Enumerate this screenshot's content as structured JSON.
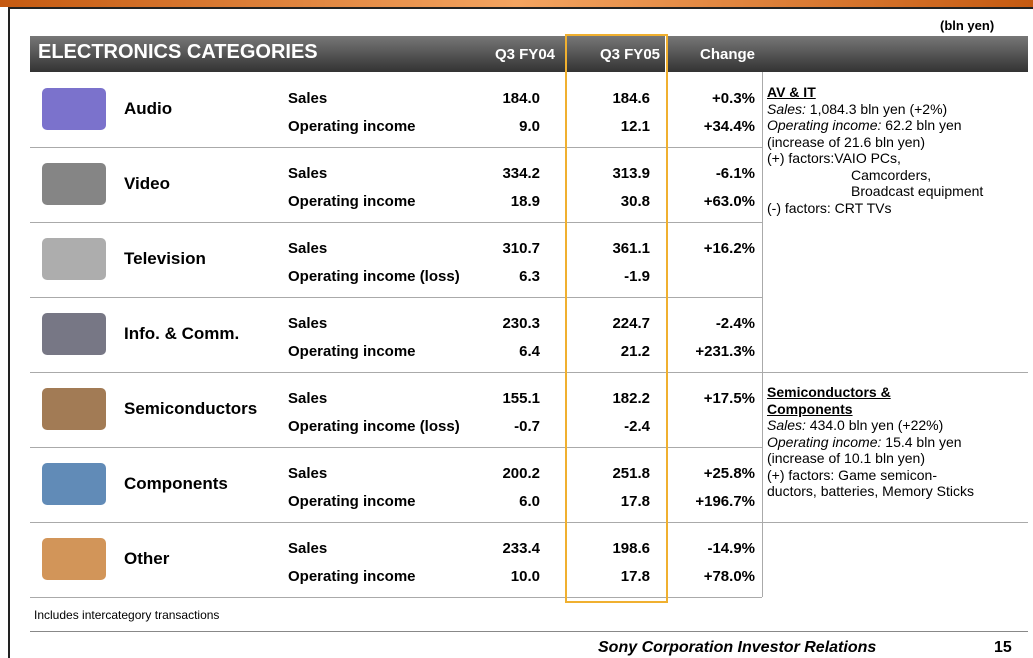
{
  "unit_note": "(bln yen)",
  "table": {
    "header": [
      "ELECTRONICS CATEGORIES",
      "Q3 FY04",
      "Q3 FY05",
      "Change"
    ],
    "rows": [
      {
        "category": "Audio",
        "lines": [
          [
            "Sales",
            "184.0",
            "184.6",
            "+0.3%"
          ],
          [
            "Operating income",
            "9.0",
            "12.1",
            "+34.4%"
          ]
        ]
      },
      {
        "category": "Video",
        "lines": [
          [
            "Sales",
            "334.2",
            "313.9",
            "-6.1%"
          ],
          [
            "Operating income",
            "18.9",
            "30.8",
            "+63.0%"
          ]
        ]
      },
      {
        "category": "Television",
        "lines": [
          [
            "Sales",
            "310.7",
            "361.1",
            "+16.2%"
          ],
          [
            "Operating income (loss)",
            "6.3",
            "-1.9"
          ]
        ]
      },
      {
        "category": "Info. & Comm.",
        "lines": [
          [
            "Sales",
            "230.3",
            "224.7",
            "-2.4%"
          ],
          [
            "Operating income",
            "6.4",
            "21.2",
            "+231.3%"
          ]
        ]
      },
      {
        "category": "Semiconductors",
        "lines": [
          [
            "Sales",
            "155.1",
            "182.2",
            "+17.5%"
          ],
          [
            "Operating income (loss)",
            "-0.7",
            "-2.4"
          ]
        ]
      },
      {
        "category": "Components",
        "lines": [
          [
            "Sales",
            "200.2",
            "251.8",
            "+25.8%"
          ],
          [
            "Operating income",
            "6.0",
            "17.8",
            "+196.7%"
          ]
        ]
      },
      {
        "category": "Other",
        "lines": [
          [
            "Sales",
            "233.4",
            "198.6",
            "-14.9%"
          ],
          [
            "Operating income",
            "10.0",
            "17.8",
            "+78.0%"
          ]
        ]
      }
    ]
  },
  "notes": [
    {
      "heading": [
        "AV & IT"
      ],
      "lines": [
        {
          "label": "Sales:",
          "text": " 1,084.3 bln yen (+2%)"
        },
        {
          "label": "Operating income:",
          "text": " 62.2 bln yen"
        },
        {
          "text": "(increase of 21.6 bln yen)"
        },
        {
          "text": "(+) factors:VAIO PCs,"
        },
        {
          "text": "Camcorders,",
          "indent": true
        },
        {
          "text": "Broadcast equipment",
          "indent": true
        },
        {
          "text": "(-) factors: CRT TVs"
        }
      ]
    },
    {
      "heading": [
        "Semiconductors &",
        "Components"
      ],
      "lines": [
        {
          "label": "Sales:",
          "text": " 434.0 bln yen (+22%)"
        },
        {
          "label": "Operating income:",
          "text": " 15.4 bln yen"
        },
        {
          "text": "(increase of 10.1 bln yen)"
        },
        {
          "text": "(+) factors: Game semicon-"
        },
        {
          "text": "ductors, batteries, Memory Sticks"
        }
      ]
    }
  ],
  "footnote": "Includes intercategory transactions",
  "footer": {
    "company": "Sony Corporation Investor Relations",
    "page": "15"
  }
}
